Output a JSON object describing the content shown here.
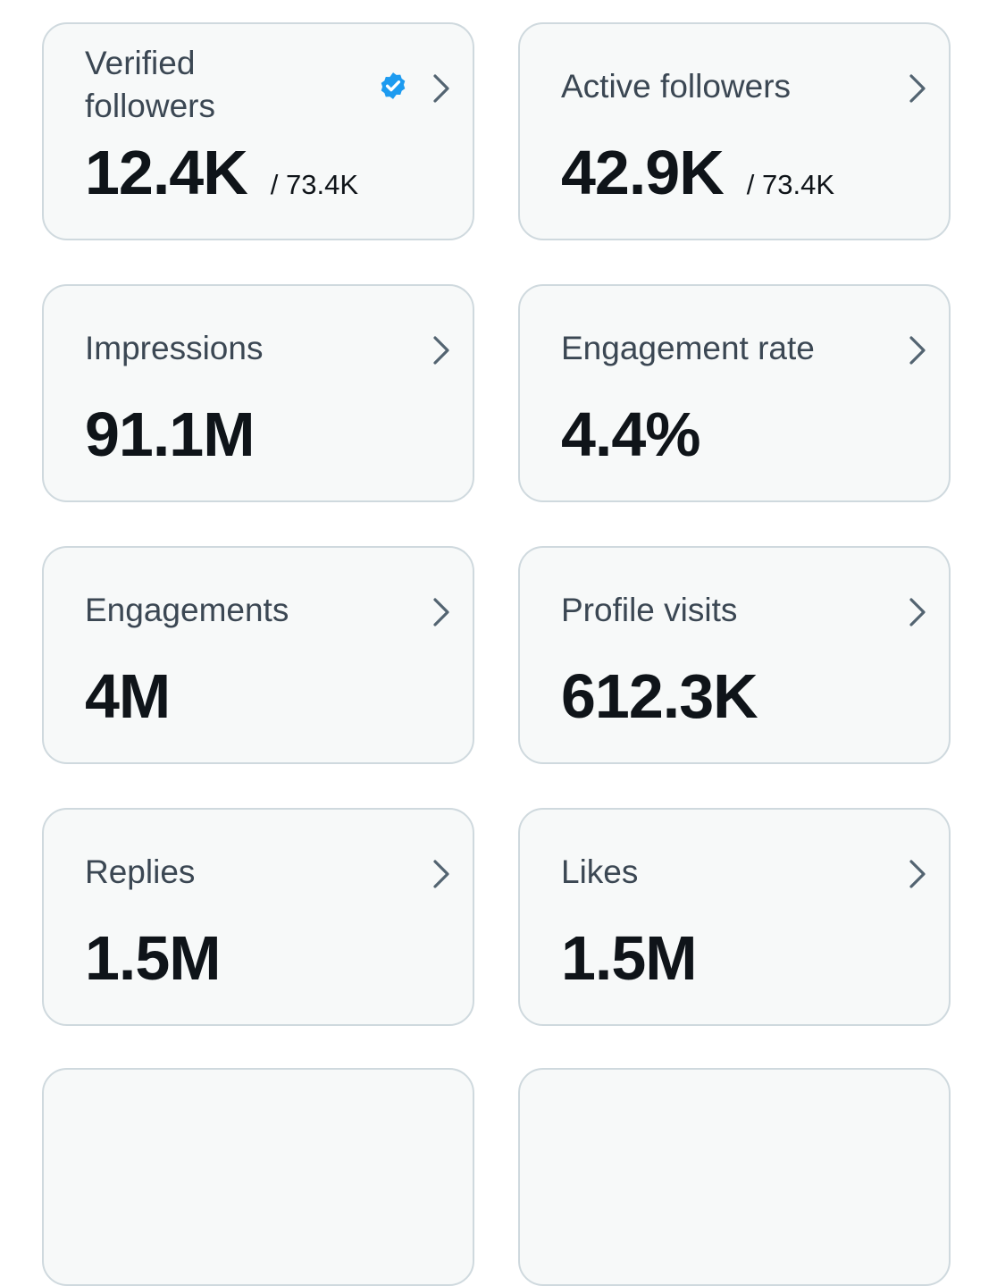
{
  "cards": [
    {
      "label": "Verified followers",
      "value": "12.4K",
      "total": "/ 73.4K",
      "verified": true
    },
    {
      "label": "Active followers",
      "value": "42.9K",
      "total": "/ 73.4K"
    },
    {
      "label": "Impressions",
      "value": "91.1M"
    },
    {
      "label": "Engagement rate",
      "value": "4.4%"
    },
    {
      "label": "Engagements",
      "value": "4M"
    },
    {
      "label": "Profile visits",
      "value": "612.3K"
    },
    {
      "label": "Replies",
      "value": "1.5M"
    },
    {
      "label": "Likes",
      "value": "1.5M"
    }
  ]
}
